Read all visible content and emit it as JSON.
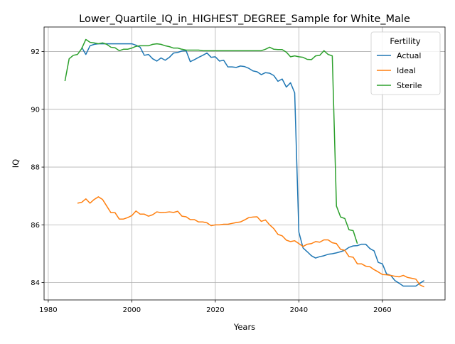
{
  "chart_data": {
    "type": "line",
    "title": "Lower_Quartile_IQ_in_HIGHEST_DEGREE_Sample for White_Male",
    "xlabel": "Years",
    "ylabel": "IQ",
    "xlim": [
      1979,
      2075
    ],
    "ylim": [
      83.4,
      92.85
    ],
    "x_ticks": [
      1980,
      2000,
      2020,
      2040,
      2060
    ],
    "y_ticks": [
      84,
      86,
      88,
      90,
      92
    ],
    "grid": true,
    "legend": {
      "title": "Fertility",
      "placement": "top-right"
    },
    "series": [
      {
        "name": "Actual",
        "color": "#1f77b4",
        "points": [
          [
            1988,
            92.15
          ],
          [
            1989,
            91.9
          ],
          [
            1990,
            92.2
          ],
          [
            1991,
            92.25
          ],
          [
            1992,
            92.27
          ],
          [
            1993,
            92.27
          ],
          [
            1994,
            92.27
          ],
          [
            1995,
            92.27
          ],
          [
            1996,
            92.27
          ],
          [
            1997,
            92.27
          ],
          [
            1998,
            92.27
          ],
          [
            1999,
            92.27
          ],
          [
            2000,
            92.27
          ],
          [
            2001,
            92.22
          ],
          [
            2002,
            92.15
          ],
          [
            2003,
            91.87
          ],
          [
            2004,
            91.9
          ],
          [
            2005,
            91.75
          ],
          [
            2006,
            91.67
          ],
          [
            2007,
            91.78
          ],
          [
            2008,
            91.7
          ],
          [
            2009,
            91.8
          ],
          [
            2010,
            91.95
          ],
          [
            2011,
            91.97
          ],
          [
            2012,
            92.02
          ],
          [
            2013,
            92.03
          ],
          [
            2014,
            91.65
          ],
          [
            2015,
            91.72
          ],
          [
            2016,
            91.8
          ],
          [
            2017,
            91.87
          ],
          [
            2018,
            91.95
          ],
          [
            2019,
            91.8
          ],
          [
            2020,
            91.82
          ],
          [
            2021,
            91.67
          ],
          [
            2022,
            91.7
          ],
          [
            2023,
            91.47
          ],
          [
            2024,
            91.47
          ],
          [
            2025,
            91.45
          ],
          [
            2026,
            91.5
          ],
          [
            2027,
            91.48
          ],
          [
            2028,
            91.42
          ],
          [
            2029,
            91.33
          ],
          [
            2030,
            91.3
          ],
          [
            2031,
            91.2
          ],
          [
            2032,
            91.27
          ],
          [
            2033,
            91.25
          ],
          [
            2034,
            91.17
          ],
          [
            2035,
            90.97
          ],
          [
            2036,
            91.05
          ],
          [
            2037,
            90.77
          ],
          [
            2038,
            90.92
          ],
          [
            2039,
            90.57
          ],
          [
            2040,
            85.75
          ],
          [
            2041,
            85.2
          ],
          [
            2042,
            85.07
          ],
          [
            2043,
            84.93
          ],
          [
            2044,
            84.85
          ],
          [
            2045,
            84.9
          ],
          [
            2046,
            84.93
          ],
          [
            2047,
            84.98
          ],
          [
            2048,
            85.0
          ],
          [
            2049,
            85.03
          ],
          [
            2050,
            85.07
          ],
          [
            2051,
            85.12
          ],
          [
            2052,
            85.22
          ],
          [
            2053,
            85.27
          ],
          [
            2054,
            85.28
          ],
          [
            2055,
            85.33
          ],
          [
            2056,
            85.33
          ],
          [
            2057,
            85.18
          ],
          [
            2058,
            85.1
          ],
          [
            2059,
            84.7
          ],
          [
            2060,
            84.65
          ],
          [
            2061,
            84.3
          ],
          [
            2062,
            84.25
          ],
          [
            2063,
            84.07
          ],
          [
            2064,
            83.98
          ],
          [
            2065,
            83.88
          ],
          [
            2066,
            83.88
          ],
          [
            2067,
            83.88
          ],
          [
            2068,
            83.88
          ],
          [
            2069,
            83.98
          ],
          [
            2070,
            84.07
          ]
        ]
      },
      {
        "name": "Ideal",
        "color": "#ff7f0e",
        "points": [
          [
            1987,
            86.75
          ],
          [
            1988,
            86.78
          ],
          [
            1989,
            86.9
          ],
          [
            1990,
            86.75
          ],
          [
            1991,
            86.88
          ],
          [
            1992,
            86.97
          ],
          [
            1993,
            86.88
          ],
          [
            1994,
            86.65
          ],
          [
            1995,
            86.42
          ],
          [
            1996,
            86.42
          ],
          [
            1997,
            86.2
          ],
          [
            1998,
            86.2
          ],
          [
            1999,
            86.25
          ],
          [
            2000,
            86.32
          ],
          [
            2001,
            86.48
          ],
          [
            2002,
            86.37
          ],
          [
            2003,
            86.37
          ],
          [
            2004,
            86.3
          ],
          [
            2005,
            86.35
          ],
          [
            2006,
            86.45
          ],
          [
            2007,
            86.42
          ],
          [
            2008,
            86.43
          ],
          [
            2009,
            86.45
          ],
          [
            2010,
            86.43
          ],
          [
            2011,
            86.47
          ],
          [
            2012,
            86.3
          ],
          [
            2013,
            86.28
          ],
          [
            2014,
            86.18
          ],
          [
            2015,
            86.18
          ],
          [
            2016,
            86.1
          ],
          [
            2017,
            86.1
          ],
          [
            2018,
            86.07
          ],
          [
            2019,
            85.97
          ],
          [
            2020,
            86.0
          ],
          [
            2021,
            86.0
          ],
          [
            2022,
            86.02
          ],
          [
            2023,
            86.02
          ],
          [
            2024,
            86.05
          ],
          [
            2025,
            86.08
          ],
          [
            2026,
            86.1
          ],
          [
            2027,
            86.17
          ],
          [
            2028,
            86.25
          ],
          [
            2029,
            86.27
          ],
          [
            2030,
            86.28
          ],
          [
            2031,
            86.12
          ],
          [
            2032,
            86.17
          ],
          [
            2033,
            86.0
          ],
          [
            2034,
            85.87
          ],
          [
            2035,
            85.67
          ],
          [
            2036,
            85.62
          ],
          [
            2037,
            85.47
          ],
          [
            2038,
            85.42
          ],
          [
            2039,
            85.45
          ],
          [
            2040,
            85.35
          ],
          [
            2041,
            85.25
          ],
          [
            2042,
            85.33
          ],
          [
            2043,
            85.35
          ],
          [
            2044,
            85.42
          ],
          [
            2045,
            85.4
          ],
          [
            2046,
            85.48
          ],
          [
            2047,
            85.48
          ],
          [
            2048,
            85.38
          ],
          [
            2049,
            85.35
          ],
          [
            2050,
            85.15
          ],
          [
            2051,
            85.12
          ],
          [
            2052,
            84.9
          ],
          [
            2053,
            84.88
          ],
          [
            2054,
            84.65
          ],
          [
            2055,
            84.65
          ],
          [
            2056,
            84.57
          ],
          [
            2057,
            84.55
          ],
          [
            2058,
            84.45
          ],
          [
            2059,
            84.37
          ],
          [
            2060,
            84.28
          ],
          [
            2061,
            84.27
          ],
          [
            2062,
            84.25
          ],
          [
            2063,
            84.22
          ],
          [
            2064,
            84.2
          ],
          [
            2065,
            84.25
          ],
          [
            2066,
            84.18
          ],
          [
            2067,
            84.15
          ],
          [
            2068,
            84.12
          ],
          [
            2069,
            83.92
          ],
          [
            2070,
            83.85
          ]
        ]
      },
      {
        "name": "Sterile",
        "color": "#2ca02c",
        "points": [
          [
            1984,
            90.98
          ],
          [
            1985,
            91.75
          ],
          [
            1986,
            91.87
          ],
          [
            1987,
            91.9
          ],
          [
            1988,
            92.1
          ],
          [
            1989,
            92.42
          ],
          [
            1990,
            92.32
          ],
          [
            1991,
            92.3
          ],
          [
            1992,
            92.27
          ],
          [
            1993,
            92.3
          ],
          [
            1994,
            92.25
          ],
          [
            1995,
            92.15
          ],
          [
            1996,
            92.13
          ],
          [
            1997,
            92.03
          ],
          [
            1998,
            92.08
          ],
          [
            1999,
            92.08
          ],
          [
            2000,
            92.12
          ],
          [
            2001,
            92.18
          ],
          [
            2002,
            92.2
          ],
          [
            2003,
            92.2
          ],
          [
            2004,
            92.2
          ],
          [
            2005,
            92.25
          ],
          [
            2006,
            92.27
          ],
          [
            2007,
            92.25
          ],
          [
            2008,
            92.2
          ],
          [
            2009,
            92.17
          ],
          [
            2010,
            92.12
          ],
          [
            2011,
            92.12
          ],
          [
            2012,
            92.08
          ],
          [
            2013,
            92.05
          ],
          [
            2014,
            92.05
          ],
          [
            2015,
            92.05
          ],
          [
            2016,
            92.05
          ],
          [
            2017,
            92.03
          ],
          [
            2018,
            92.03
          ],
          [
            2019,
            92.03
          ],
          [
            2020,
            92.03
          ],
          [
            2021,
            92.03
          ],
          [
            2022,
            92.03
          ],
          [
            2023,
            92.03
          ],
          [
            2024,
            92.03
          ],
          [
            2025,
            92.03
          ],
          [
            2026,
            92.03
          ],
          [
            2027,
            92.03
          ],
          [
            2028,
            92.03
          ],
          [
            2029,
            92.03
          ],
          [
            2030,
            92.03
          ],
          [
            2031,
            92.03
          ],
          [
            2032,
            92.08
          ],
          [
            2033,
            92.15
          ],
          [
            2034,
            92.08
          ],
          [
            2035,
            92.07
          ],
          [
            2036,
            92.07
          ],
          [
            2037,
            91.98
          ],
          [
            2038,
            91.82
          ],
          [
            2039,
            91.85
          ],
          [
            2040,
            91.82
          ],
          [
            2041,
            91.8
          ],
          [
            2042,
            91.73
          ],
          [
            2043,
            91.72
          ],
          [
            2044,
            91.85
          ],
          [
            2045,
            91.87
          ],
          [
            2046,
            92.03
          ],
          [
            2047,
            91.9
          ],
          [
            2048,
            91.85
          ],
          [
            2049,
            86.65
          ],
          [
            2050,
            86.27
          ],
          [
            2051,
            86.22
          ],
          [
            2052,
            85.83
          ],
          [
            2053,
            85.8
          ],
          [
            2054,
            85.35
          ]
        ]
      }
    ]
  }
}
